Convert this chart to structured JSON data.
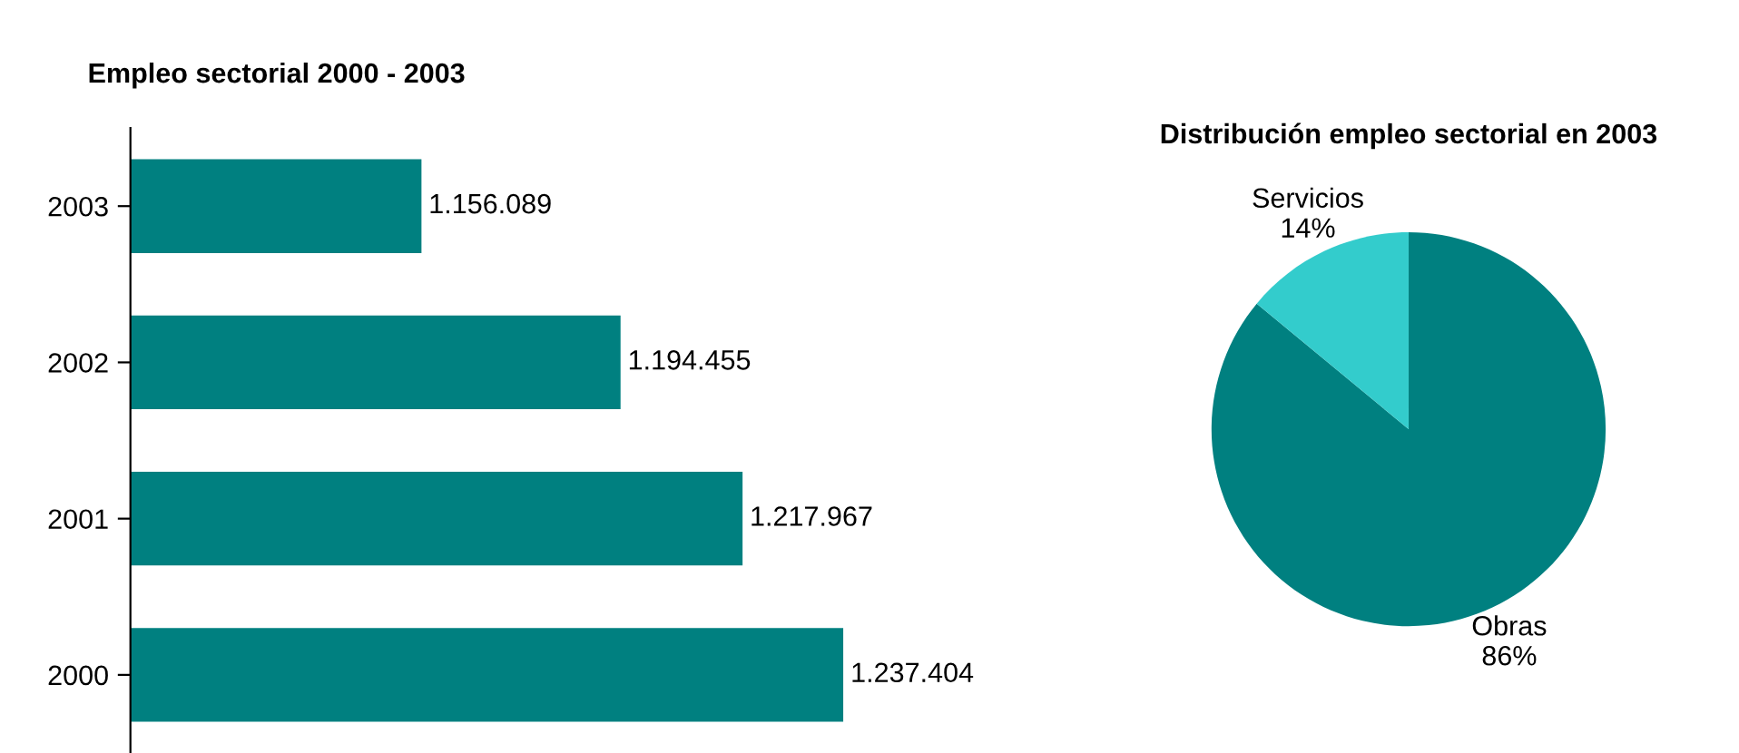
{
  "chart_data": [
    {
      "type": "bar",
      "orientation": "horizontal",
      "title": "Empleo sectorial 2000 - 2003",
      "categories": [
        "2003",
        "2002",
        "2001",
        "2000"
      ],
      "values": [
        1156089,
        1194455,
        1217967,
        1237404
      ],
      "value_labels": [
        "1.156.089",
        "1.194.455",
        "1.217.967",
        "1.237.404"
      ],
      "color": "#008080",
      "xlim": [
        1100000,
        1237404
      ],
      "tick_labels": "y",
      "grid": false,
      "legend": false
    },
    {
      "type": "pie",
      "title": "Distribución empleo sectorial en 2003",
      "categories": [
        "Obras",
        "Servicios"
      ],
      "values": [
        86,
        14
      ],
      "value_labels": [
        "86%",
        "14%"
      ],
      "colors": [
        "#008080",
        "#33cccc"
      ],
      "legend": false
    }
  ]
}
